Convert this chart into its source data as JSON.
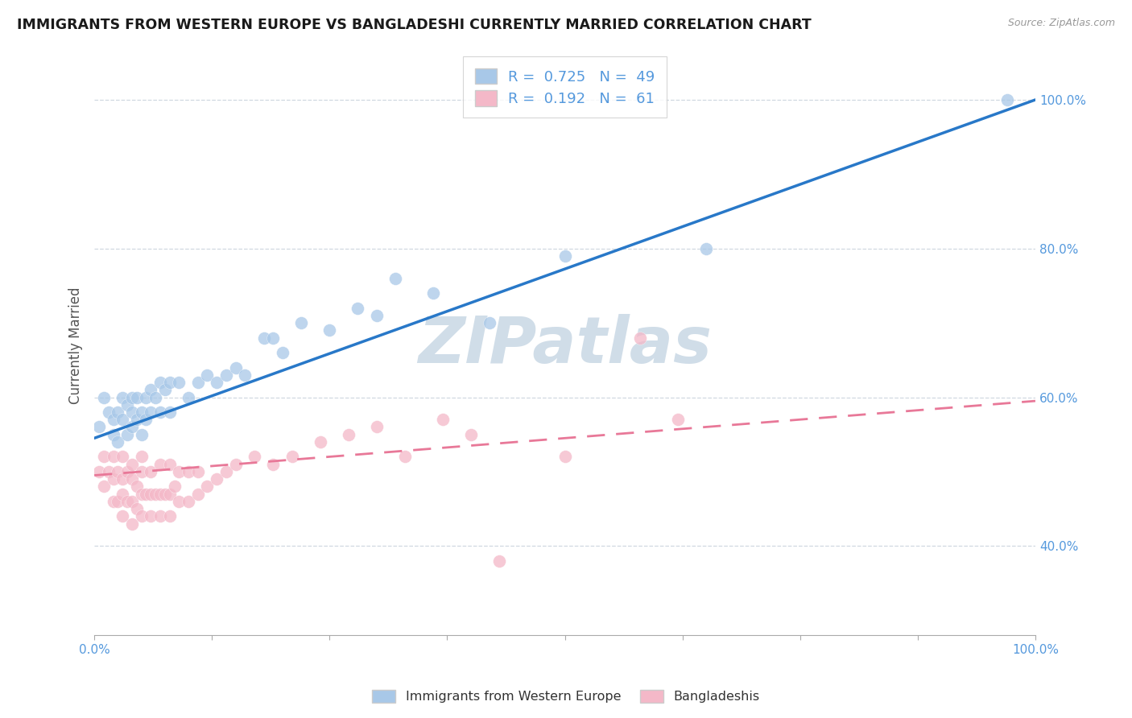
{
  "title": "IMMIGRANTS FROM WESTERN EUROPE VS BANGLADESHI CURRENTLY MARRIED CORRELATION CHART",
  "source": "Source: ZipAtlas.com",
  "ylabel": "Currently Married",
  "xlim": [
    0.0,
    1.0
  ],
  "ylim": [
    0.28,
    1.06
  ],
  "yticks": [
    0.4,
    0.6,
    0.8,
    1.0
  ],
  "ytick_labels": [
    "40.0%",
    "60.0%",
    "80.0%",
    "100.0%"
  ],
  "xtick_positions": [
    0.0,
    0.125,
    0.25,
    0.375,
    0.5,
    0.625,
    0.75,
    0.875,
    1.0
  ],
  "blue_R": 0.725,
  "blue_N": 49,
  "pink_R": 0.192,
  "pink_N": 61,
  "blue_label": "Immigrants from Western Europe",
  "pink_label": "Bangladeshis",
  "blue_color": "#a8c8e8",
  "pink_color": "#f4b8c8",
  "blue_line_color": "#2878c8",
  "pink_line_color": "#e87898",
  "watermark_color": "#d0dde8",
  "background_color": "#ffffff",
  "grid_color": "#d0d8e0",
  "title_color": "#1a1a1a",
  "axis_label_color": "#555555",
  "tick_color": "#5599dd",
  "blue_x": [
    0.005,
    0.01,
    0.015,
    0.02,
    0.02,
    0.025,
    0.025,
    0.03,
    0.03,
    0.035,
    0.035,
    0.04,
    0.04,
    0.04,
    0.045,
    0.045,
    0.05,
    0.05,
    0.055,
    0.055,
    0.06,
    0.06,
    0.065,
    0.07,
    0.07,
    0.075,
    0.08,
    0.08,
    0.09,
    0.1,
    0.11,
    0.12,
    0.13,
    0.14,
    0.15,
    0.16,
    0.18,
    0.19,
    0.2,
    0.22,
    0.25,
    0.28,
    0.3,
    0.32,
    0.36,
    0.42,
    0.5,
    0.65,
    0.97
  ],
  "blue_y": [
    0.56,
    0.6,
    0.58,
    0.55,
    0.57,
    0.54,
    0.58,
    0.57,
    0.6,
    0.55,
    0.59,
    0.56,
    0.58,
    0.6,
    0.57,
    0.6,
    0.55,
    0.58,
    0.57,
    0.6,
    0.58,
    0.61,
    0.6,
    0.58,
    0.62,
    0.61,
    0.58,
    0.62,
    0.62,
    0.6,
    0.62,
    0.63,
    0.62,
    0.63,
    0.64,
    0.63,
    0.68,
    0.68,
    0.66,
    0.7,
    0.69,
    0.72,
    0.71,
    0.76,
    0.74,
    0.7,
    0.79,
    0.8,
    1.0
  ],
  "pink_x": [
    0.005,
    0.01,
    0.01,
    0.015,
    0.02,
    0.02,
    0.02,
    0.025,
    0.025,
    0.03,
    0.03,
    0.03,
    0.03,
    0.035,
    0.035,
    0.04,
    0.04,
    0.04,
    0.04,
    0.045,
    0.045,
    0.05,
    0.05,
    0.05,
    0.05,
    0.055,
    0.06,
    0.06,
    0.06,
    0.065,
    0.07,
    0.07,
    0.07,
    0.075,
    0.08,
    0.08,
    0.08,
    0.085,
    0.09,
    0.09,
    0.1,
    0.1,
    0.11,
    0.11,
    0.12,
    0.13,
    0.14,
    0.15,
    0.17,
    0.19,
    0.21,
    0.24,
    0.27,
    0.3,
    0.33,
    0.37,
    0.4,
    0.43,
    0.5,
    0.62,
    0.58
  ],
  "pink_y": [
    0.5,
    0.48,
    0.52,
    0.5,
    0.46,
    0.49,
    0.52,
    0.46,
    0.5,
    0.44,
    0.47,
    0.49,
    0.52,
    0.46,
    0.5,
    0.43,
    0.46,
    0.49,
    0.51,
    0.45,
    0.48,
    0.44,
    0.47,
    0.5,
    0.52,
    0.47,
    0.44,
    0.47,
    0.5,
    0.47,
    0.44,
    0.47,
    0.51,
    0.47,
    0.44,
    0.47,
    0.51,
    0.48,
    0.46,
    0.5,
    0.46,
    0.5,
    0.47,
    0.5,
    0.48,
    0.49,
    0.5,
    0.51,
    0.52,
    0.51,
    0.52,
    0.54,
    0.55,
    0.56,
    0.52,
    0.57,
    0.55,
    0.38,
    0.52,
    0.57,
    0.68
  ],
  "blue_line_x0": 0.0,
  "blue_line_y0": 0.545,
  "blue_line_x1": 1.0,
  "blue_line_y1": 1.0,
  "pink_line_x0": 0.0,
  "pink_line_y0": 0.495,
  "pink_line_x1": 1.0,
  "pink_line_y1": 0.595
}
